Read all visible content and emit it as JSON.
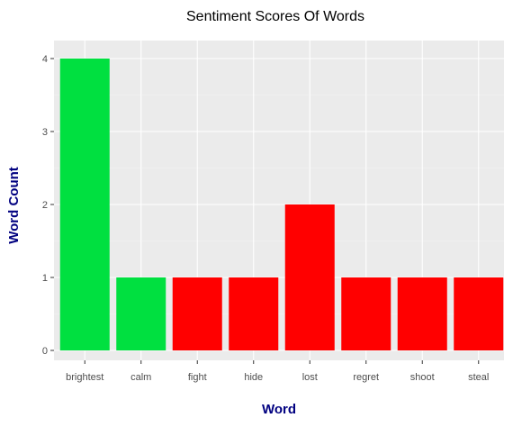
{
  "colors": {
    "positive": "#00e040",
    "negative": "#ff0000",
    "panel_background": "#ebebeb",
    "grid_major": "#ffffff",
    "grid_minor": "#f3f3f3",
    "tick_text": "#4d4d4d",
    "axis_title": "#000080",
    "title": "#000000"
  },
  "chart_data": {
    "type": "bar",
    "title": "Sentiment Scores Of Words",
    "xlabel": "Word",
    "ylabel": "Word Count",
    "categories": [
      "brightest",
      "calm",
      "fight",
      "hide",
      "lost",
      "regret",
      "shoot",
      "steal"
    ],
    "values": [
      4,
      1,
      1,
      1,
      2,
      1,
      1,
      1
    ],
    "sentiment": [
      "positive",
      "positive",
      "negative",
      "negative",
      "negative",
      "negative",
      "negative",
      "negative"
    ],
    "ylim": [
      0,
      4
    ],
    "yticks": [
      0,
      1,
      2,
      3,
      4
    ],
    "grid": true,
    "legend": "none"
  }
}
